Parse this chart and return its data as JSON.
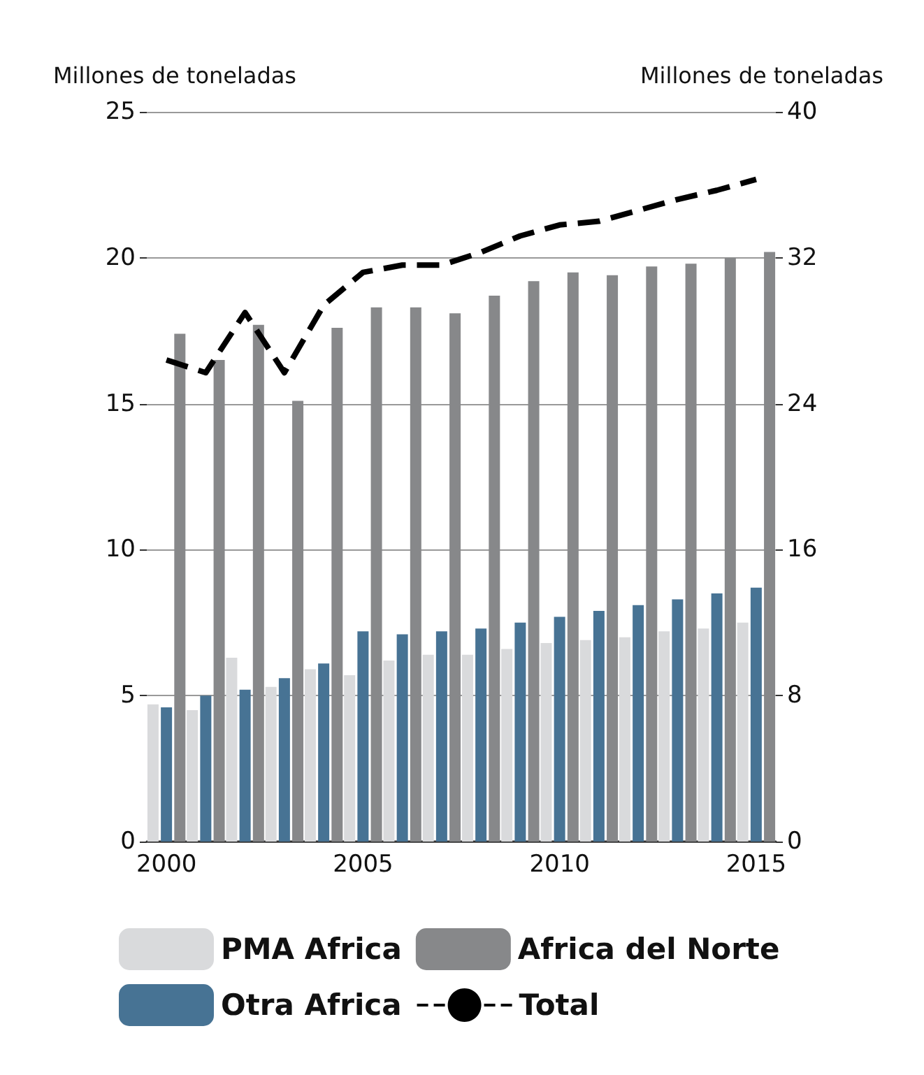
{
  "chart_data": {
    "type": "bar",
    "ylabel": "Millones de toneladas",
    "y2label": "Millones de toneladas",
    "categories": [
      "2000",
      null,
      null,
      null,
      null,
      "2005",
      null,
      null,
      null,
      null,
      "2010",
      null,
      null,
      null,
      null,
      "2015"
    ],
    "series": [
      {
        "name": "PMA Africa",
        "color": "#d9dadc",
        "values": [
          4.7,
          4.5,
          6.3,
          5.3,
          5.9,
          5.7,
          6.2,
          6.4,
          6.4,
          6.6,
          6.8,
          6.9,
          7.0,
          7.2,
          7.3,
          7.5
        ]
      },
      {
        "name": "Otra Africa",
        "color": "#477394",
        "values": [
          4.6,
          5.0,
          5.2,
          5.6,
          6.1,
          7.2,
          7.1,
          7.2,
          7.3,
          7.5,
          7.7,
          7.9,
          8.1,
          8.3,
          8.5,
          8.7
        ]
      },
      {
        "name": "Africa del Norte",
        "color": "#87888a",
        "values": [
          17.4,
          16.5,
          17.7,
          15.1,
          17.6,
          18.3,
          18.3,
          18.1,
          18.7,
          19.2,
          19.5,
          19.4,
          19.7,
          19.8,
          20.0,
          20.2
        ]
      },
      {
        "name": "Total",
        "type": "line",
        "axis": "y2",
        "color": "#000000",
        "line_style": "dashed",
        "marker": "none",
        "values": [
          26.4,
          25.7,
          29.0,
          25.7,
          29.4,
          31.2,
          31.6,
          31.6,
          32.3,
          33.2,
          33.8,
          34.0,
          34.6,
          35.2,
          35.7,
          36.3
        ]
      }
    ],
    "ylim": [
      0,
      25
    ],
    "yticks": [
      0,
      5,
      10,
      15,
      20,
      25
    ],
    "y2lim": [
      0,
      40
    ],
    "y2ticks": [
      0,
      8,
      16,
      24,
      32,
      40
    ],
    "grid": "y",
    "legend": "bottom"
  }
}
